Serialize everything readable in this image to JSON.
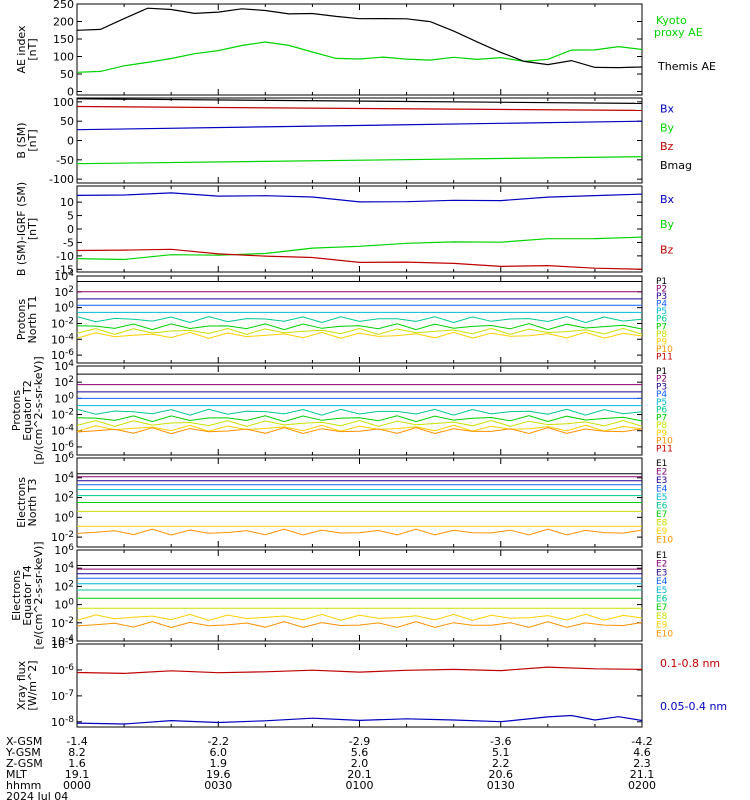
{
  "colors": {
    "black": "#000000",
    "green": "#00d400",
    "blue": "#0000c0",
    "red": "#c00000",
    "p": [
      "#000000",
      "#8b0070",
      "#20009a",
      "#1060ff",
      "#00b8d8",
      "#00c890",
      "#00d000",
      "#c8e000",
      "#ffd000",
      "#ff9000",
      "#c00000"
    ],
    "e": [
      "#000000",
      "#8b0070",
      "#20009a",
      "#1060ff",
      "#00b8d8",
      "#00c890",
      "#00d000",
      "#c8e000",
      "#ffd000",
      "#ff9000",
      "#c00000"
    ]
  },
  "chart_data": [
    {
      "type": "line",
      "ylabel": "AE index [nT]",
      "ylim": [
        -10,
        250
      ],
      "yticks": [
        "250",
        "200",
        "150",
        "100",
        "50",
        "0"
      ],
      "ytick_values": [
        250,
        200,
        150,
        100,
        50,
        0
      ],
      "series": [
        {
          "name": "Kyoto proxy AE",
          "color": "#00d400",
          "x": [
            0,
            5,
            10,
            15,
            20,
            25,
            30,
            35,
            40,
            45,
            50,
            55,
            60,
            65,
            70,
            75,
            80,
            85,
            90,
            95,
            100,
            105,
            110,
            115,
            120
          ],
          "y": [
            55,
            60,
            70,
            85,
            95,
            105,
            120,
            130,
            140,
            135,
            110,
            95,
            95,
            95,
            95,
            90,
            95,
            95,
            95,
            85,
            95,
            115,
            120,
            130,
            120
          ]
        },
        {
          "name": "Themis AE",
          "color": "#000000",
          "x": [
            0,
            5,
            10,
            15,
            20,
            25,
            30,
            35,
            40,
            45,
            50,
            55,
            60,
            65,
            70,
            75,
            80,
            85,
            90,
            95,
            100,
            105,
            110,
            115,
            120
          ],
          "y": [
            175,
            180,
            205,
            240,
            235,
            220,
            230,
            235,
            230,
            225,
            220,
            215,
            210,
            205,
            210,
            200,
            170,
            145,
            110,
            85,
            80,
            85,
            70,
            70,
            70
          ]
        }
      ]
    },
    {
      "type": "line",
      "ylabel": "B (SM) [nT]",
      "ylim": [
        -110,
        110
      ],
      "yticks": [
        "100",
        "50",
        "0",
        "-50",
        "-100"
      ],
      "ytick_values": [
        100,
        50,
        0,
        -50,
        -100
      ],
      "series": [
        {
          "name": "Bx",
          "color": "#0000c0",
          "x": [
            0,
            120
          ],
          "y": [
            28,
            50
          ]
        },
        {
          "name": "By",
          "color": "#00d400",
          "x": [
            0,
            120
          ],
          "y": [
            -60,
            -42
          ]
        },
        {
          "name": "Bz",
          "color": "#c00000",
          "x": [
            0,
            120
          ],
          "y": [
            88,
            78
          ]
        },
        {
          "name": "Bmag",
          "color": "#000000",
          "x": [
            0,
            120
          ],
          "y": [
            108,
            96
          ]
        }
      ]
    },
    {
      "type": "line",
      "ylabel": "B (SM)-IGRF (SM) [nT]",
      "ylim": [
        -16,
        16
      ],
      "yticks": [
        "10",
        "5",
        "0",
        "-5",
        "-10",
        "-15"
      ],
      "ytick_values": [
        10,
        5,
        0,
        -5,
        -10,
        -15
      ],
      "series": [
        {
          "name": "Bx",
          "color": "#0000c0",
          "x": [
            0,
            10,
            20,
            30,
            40,
            50,
            60,
            70,
            80,
            90,
            100,
            110,
            120
          ],
          "y": [
            12.5,
            13,
            13,
            12.5,
            12.5,
            11.5,
            10.5,
            10,
            10.5,
            11,
            11.5,
            12.5,
            13
          ]
        },
        {
          "name": "By",
          "color": "#00d400",
          "x": [
            0,
            10,
            20,
            30,
            40,
            50,
            60,
            70,
            80,
            90,
            100,
            110,
            120
          ],
          "y": [
            -11,
            -11,
            -10,
            -9.5,
            -9,
            -7.5,
            -6,
            -5.5,
            -5,
            -4.5,
            -4,
            -3.5,
            -3
          ]
        },
        {
          "name": "Bz",
          "color": "#c00000",
          "x": [
            0,
            10,
            20,
            30,
            40,
            50,
            60,
            70,
            80,
            90,
            100,
            110,
            120
          ],
          "y": [
            -8,
            -7.5,
            -8,
            -9,
            -10,
            -11,
            -12,
            -12.5,
            -13,
            -13.5,
            -14,
            -14.5,
            -15
          ]
        }
      ]
    },
    {
      "type": "line",
      "ylabel": "Protons North T1",
      "yscale": "log",
      "ylim_exp": [
        -7,
        4
      ],
      "yticks": [
        "10^4",
        "10^2",
        "10^0",
        "10^-2",
        "10^-4",
        "10^-6"
      ],
      "ytick_exps": [
        4,
        2,
        0,
        -2,
        -4,
        -6
      ],
      "channels": [
        "P1",
        "P2",
        "P3",
        "P4",
        "P5",
        "P6",
        "P7",
        "P8",
        "P9",
        "P10",
        "P11"
      ],
      "levels_exp": [
        3.3,
        2.0,
        1.1,
        0.3,
        -0.6,
        -1.5,
        -2.4,
        -3.0,
        -3.5,
        null,
        null
      ]
    },
    {
      "type": "line",
      "ylabel": "Protons Equator T2 [p/(cm^2-s-sr-keV)]",
      "yscale": "log",
      "ylim_exp": [
        -7,
        4
      ],
      "yticks": [
        "10^4",
        "10^2",
        "10^0",
        "10^-2",
        "10^-4",
        "10^-6"
      ],
      "ytick_exps": [
        4,
        2,
        0,
        -2,
        -4,
        -6
      ],
      "channels": [
        "P1",
        "P2",
        "P3",
        "P4",
        "P5",
        "P6",
        "P7",
        "P8",
        "P9",
        "P10",
        "P11"
      ],
      "levels_exp": [
        3.0,
        1.7,
        0.8,
        0.0,
        -0.9,
        -1.7,
        -2.5,
        -3.1,
        -3.7,
        -4.0,
        null
      ]
    },
    {
      "type": "line",
      "ylabel": "Electrons North T3",
      "yscale": "log",
      "ylim_exp": [
        -3,
        6
      ],
      "yticks": [
        "10^6",
        "10^4",
        "10^2",
        "10^0",
        "10^-2"
      ],
      "ytick_exps": [
        6,
        4,
        2,
        0,
        -2
      ],
      "channels": [
        "E1",
        "E2",
        "E3",
        "E4",
        "E5",
        "E6",
        "E7",
        "E8",
        "E9",
        "E10"
      ],
      "levels_exp": [
        4.4,
        4.1,
        3.7,
        3.3,
        2.8,
        2.2,
        1.5,
        0.6,
        -0.9,
        -1.5
      ]
    },
    {
      "type": "line",
      "ylabel": "Electrons Equator T4 [e/(cm^2-s-sr-keV)]",
      "yscale": "log",
      "ylim_exp": [
        -4,
        6
      ],
      "yticks": [
        "10^6",
        "10^4",
        "10^2",
        "10^0",
        "10^-2",
        "10^-4"
      ],
      "ytick_exps": [
        6,
        4,
        2,
        0,
        -2,
        -4
      ],
      "channels": [
        "E1",
        "E2",
        "E3",
        "E4",
        "E5",
        "E6",
        "E7",
        "E8",
        "E9",
        "E10"
      ],
      "levels_exp": [
        4.3,
        3.9,
        3.4,
        2.9,
        2.3,
        1.6,
        0.7,
        -0.4,
        -1.4,
        -2.2
      ]
    },
    {
      "type": "line",
      "ylabel": "Xray flux [W/m^2]",
      "yscale": "log",
      "ylim_exp": [
        -8.2,
        -5
      ],
      "yticks": [
        "10^-5",
        "10^-6",
        "10^-7",
        "10^-8"
      ],
      "ytick_exps": [
        -5,
        -6,
        -7,
        -8
      ],
      "series": [
        {
          "name": "0.1-0.8 nm",
          "color": "#c00000",
          "x": [
            0,
            10,
            20,
            30,
            40,
            50,
            60,
            70,
            80,
            90,
            100,
            110,
            120
          ],
          "y_exp": [
            -6.1,
            -6.1,
            -6.08,
            -6.08,
            -6.06,
            -6.05,
            -6.04,
            -6.03,
            -6.0,
            -5.98,
            -5.93,
            -5.95,
            -5.98
          ]
        },
        {
          "name": "0.05-0.4 nm",
          "color": "#0000c0",
          "x": [
            0,
            10,
            20,
            30,
            40,
            50,
            60,
            70,
            80,
            90,
            100,
            105,
            110,
            115,
            120
          ],
          "y_exp": [
            -8.05,
            -8.05,
            -8.0,
            -8.0,
            -7.95,
            -7.9,
            -7.9,
            -7.9,
            -7.95,
            -7.95,
            -7.85,
            -7.75,
            -7.9,
            -7.85,
            -7.95
          ]
        }
      ]
    }
  ],
  "legends": [
    [
      {
        "text": "Kyoto",
        "color": "#00d400"
      },
      {
        "text": "proxy AE",
        "color": "#00d400"
      },
      {
        "text": "Themis AE",
        "color": "#000000"
      }
    ],
    [
      {
        "text": "Bx",
        "color": "#0000c0"
      },
      {
        "text": "By",
        "color": "#00d400"
      },
      {
        "text": "Bz",
        "color": "#c00000"
      },
      {
        "text": "Bmag",
        "color": "#000000"
      }
    ],
    [
      {
        "text": "Bx",
        "color": "#0000c0"
      },
      {
        "text": "By",
        "color": "#00d400"
      },
      {
        "text": "Bz",
        "color": "#c00000"
      }
    ],
    [],
    [],
    [],
    [],
    [
      {
        "text": "0.1-0.8 nm",
        "color": "#c00000"
      },
      {
        "text": "0.05-0.4 nm",
        "color": "#0000c0"
      }
    ]
  ],
  "ephemeris": {
    "row_labels": [
      "X-GSM",
      "Y-GSM",
      "Z-GSM",
      "MLT",
      "hhmm"
    ],
    "columns": [
      [
        "-1.4",
        "8.2",
        "1.6",
        "19.1",
        "0000"
      ],
      [
        "-2.2",
        "6.0",
        "1.9",
        "19.6",
        "0030"
      ],
      [
        "-2.9",
        "5.6",
        "2.0",
        "20.1",
        "0100"
      ],
      [
        "-3.6",
        "5.1",
        "2.2",
        "20.6",
        "0130"
      ],
      [
        "-4.2",
        "4.6",
        "2.3",
        "21.1",
        "0200"
      ]
    ],
    "date": "2024 Jul 04"
  }
}
